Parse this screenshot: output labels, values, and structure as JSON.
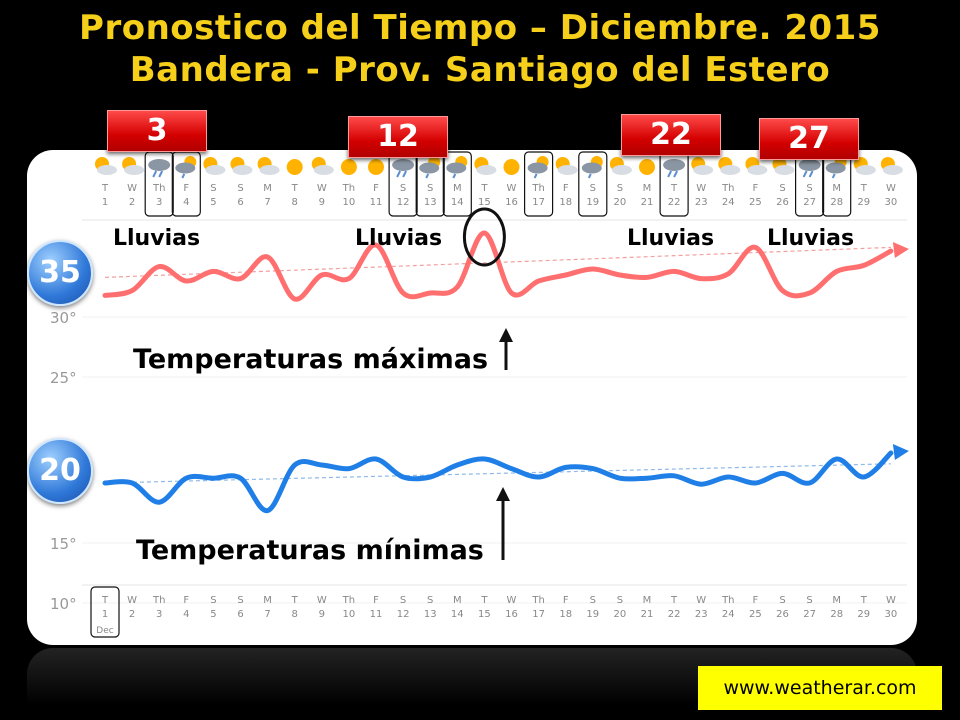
{
  "title": {
    "line1": "Pronostico  del Tiempo – Diciembre. 2015",
    "line2": "Bandera - Prov. Santiago del Estero"
  },
  "rain_badges": [
    "3",
    "12",
    "22",
    "27"
  ],
  "rain_label": "Lluvias",
  "max_badge": "35",
  "min_badge": "20",
  "max_label": "Temperaturas máximas",
  "min_label": "Temperaturas mínimas",
  "website": "www.weatherar.com",
  "colors": {
    "title": "#f5cf1a",
    "max_line": "#ff6f6f",
    "min_line": "#1f7fe6",
    "badge_red": "#d40000",
    "website_bg": "#ffff00"
  },
  "chart_data": {
    "type": "line",
    "month_label": "Dec",
    "weekdays": [
      "T",
      "W",
      "Th",
      "F",
      "S",
      "S",
      "M",
      "T",
      "W",
      "Th",
      "F",
      "S",
      "S",
      "M",
      "T",
      "W",
      "Th",
      "F",
      "S",
      "S",
      "M",
      "T",
      "W",
      "Th",
      "F",
      "S",
      "S",
      "M",
      "T",
      "W"
    ],
    "days": [
      "1",
      "2",
      "3",
      "4",
      "5",
      "6",
      "7",
      "8",
      "9",
      "10",
      "11",
      "12",
      "13",
      "14",
      "15",
      "16",
      "17",
      "18",
      "19",
      "20",
      "21",
      "22",
      "23",
      "24",
      "25",
      "26",
      "27",
      "28",
      "29",
      "30"
    ],
    "icons": [
      "partly-sunny",
      "partly-sunny",
      "storm",
      "storm-sun",
      "partly-sunny",
      "partly-sunny",
      "partly-sunny",
      "sunny",
      "partly-sunny",
      "sunny",
      "sunny",
      "storm",
      "storm-sun",
      "storm-sun",
      "partly-sunny",
      "sunny",
      "storm-sun",
      "partly-sunny",
      "storm-sun",
      "partly-sunny",
      "sunny",
      "storm",
      "partly-sunny",
      "partly-sunny",
      "partly-sunny",
      "partly-sunny",
      "storm",
      "storm-sun",
      "partly-sunny",
      "partly-sunny"
    ],
    "highlighted_days": [
      "3",
      "4",
      "12",
      "13",
      "14",
      "17",
      "19",
      "22",
      "27",
      "28"
    ],
    "yticks": [
      "30°",
      "25°",
      "15°",
      "10°"
    ],
    "series": [
      {
        "name": "Temperaturas máximas",
        "values": [
          31.8,
          32.2,
          34.2,
          33.0,
          33.8,
          33.2,
          35.0,
          31.5,
          33.5,
          33.2,
          36.0,
          32.0,
          32.0,
          32.5,
          37.0,
          32.0,
          33.0,
          33.5,
          34.0,
          33.5,
          33.3,
          33.8,
          33.2,
          33.6,
          35.8,
          32.2,
          32.0,
          33.8,
          34.3,
          35.5
        ],
        "trend": [
          33.3,
          35.8
        ]
      },
      {
        "name": "Temperaturas mínimas",
        "values": [
          20.0,
          20.0,
          18.4,
          20.4,
          20.4,
          20.4,
          17.7,
          21.5,
          21.5,
          21.2,
          22.0,
          20.5,
          20.5,
          21.5,
          22.0,
          21.2,
          20.5,
          21.3,
          21.2,
          20.4,
          20.4,
          20.6,
          19.9,
          20.5,
          20.0,
          20.8,
          20.0,
          22.0,
          20.5,
          22.5
        ],
        "trend": [
          20.0,
          21.6
        ]
      }
    ]
  }
}
